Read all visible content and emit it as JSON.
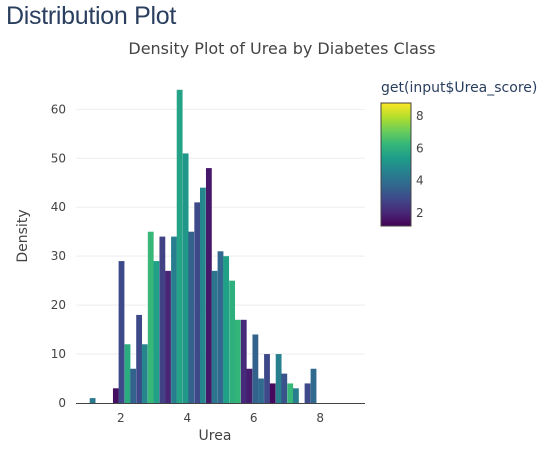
{
  "page": {
    "heading": "Distribution Plot"
  },
  "chart_data": {
    "type": "bar",
    "title": "Density Plot of Urea by Diabetes Class",
    "xlabel": "Urea",
    "ylabel": "Density",
    "xlim": [
      0.65,
      9.35
    ],
    "ylim": [
      0,
      66
    ],
    "xticks": [
      2,
      4,
      6,
      8
    ],
    "yticks": [
      0,
      10,
      20,
      30,
      40,
      50,
      60
    ],
    "grid": "horizontal",
    "bin_width": 0.175,
    "bars": [
      {
        "x": 1.15,
        "y": 1,
        "score": 4.3
      },
      {
        "x": 1.85,
        "y": 3,
        "score": 1.5
      },
      {
        "x": 2.02,
        "y": 29,
        "score": 2.9
      },
      {
        "x": 2.2,
        "y": 12,
        "score": 5.9
      },
      {
        "x": 2.37,
        "y": 7,
        "score": 3.6
      },
      {
        "x": 2.55,
        "y": 18,
        "score": 2.9
      },
      {
        "x": 2.72,
        "y": 12,
        "score": 4.7
      },
      {
        "x": 2.9,
        "y": 35,
        "score": 6.3
      },
      {
        "x": 3.07,
        "y": 29,
        "score": 5.5
      },
      {
        "x": 3.25,
        "y": 34,
        "score": 2.7
      },
      {
        "x": 3.42,
        "y": 27,
        "score": 2.0
      },
      {
        "x": 3.6,
        "y": 34,
        "score": 4.4
      },
      {
        "x": 3.77,
        "y": 64,
        "score": 5.6
      },
      {
        "x": 3.95,
        "y": 51,
        "score": 5.2
      },
      {
        "x": 4.12,
        "y": 35,
        "score": 3.6
      },
      {
        "x": 4.3,
        "y": 41,
        "score": 2.9
      },
      {
        "x": 4.47,
        "y": 44,
        "score": 4.7
      },
      {
        "x": 4.65,
        "y": 48,
        "score": 1.7
      },
      {
        "x": 4.82,
        "y": 27,
        "score": 4.2
      },
      {
        "x": 5.0,
        "y": 31,
        "score": 3.7
      },
      {
        "x": 5.17,
        "y": 30,
        "score": 5.5
      },
      {
        "x": 5.35,
        "y": 25,
        "score": 6.0
      },
      {
        "x": 5.52,
        "y": 17,
        "score": 6.2
      },
      {
        "x": 5.7,
        "y": 17,
        "score": 2.1
      },
      {
        "x": 5.87,
        "y": 7,
        "score": 1.8
      },
      {
        "x": 6.05,
        "y": 14,
        "score": 3.6
      },
      {
        "x": 6.22,
        "y": 5,
        "score": 3.8
      },
      {
        "x": 6.4,
        "y": 10,
        "score": 2.9
      },
      {
        "x": 6.57,
        "y": 4,
        "score": 1.4
      },
      {
        "x": 6.75,
        "y": 10,
        "score": 4.5
      },
      {
        "x": 6.92,
        "y": 6,
        "score": 3.2
      },
      {
        "x": 7.1,
        "y": 4,
        "score": 6.3
      },
      {
        "x": 7.27,
        "y": 3,
        "score": 4.4
      },
      {
        "x": 7.62,
        "y": 4,
        "score": 2.9
      },
      {
        "x": 7.8,
        "y": 7,
        "score": 3.8
      }
    ],
    "colorbar": {
      "title": "get(input$Urea_score)",
      "range": [
        1.2,
        8.8
      ],
      "ticks": [
        2,
        4,
        6,
        8
      ],
      "colorscale": [
        "#440154",
        "#482878",
        "#3e4989",
        "#31688e",
        "#26828e",
        "#1f9e89",
        "#35b779",
        "#6ece58",
        "#b5de2b",
        "#fde725"
      ]
    },
    "colors": {
      "axis": "#444444",
      "gridline": "#eeeeee",
      "zeroline": "#444444"
    }
  }
}
